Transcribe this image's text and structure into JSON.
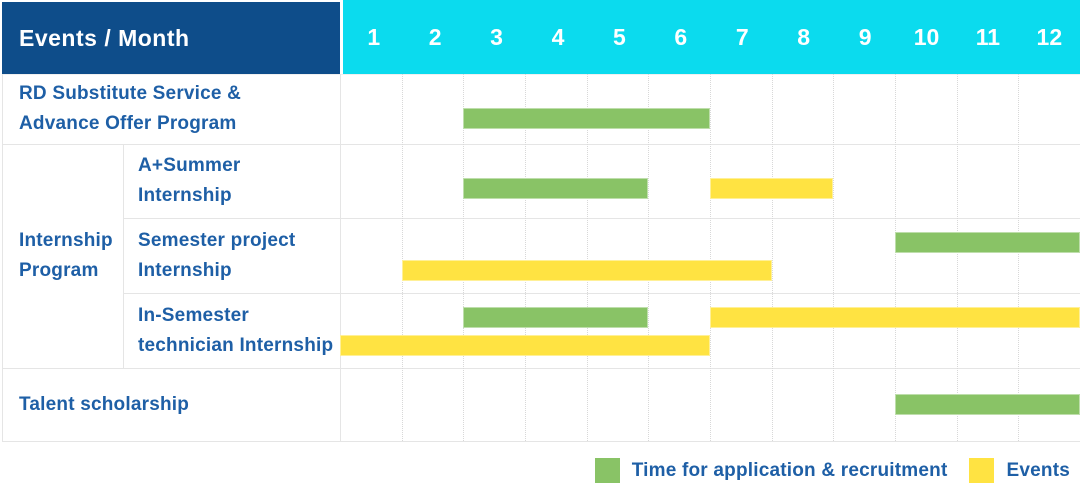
{
  "title_cell": "Events / Month",
  "months": [
    "1",
    "2",
    "3",
    "4",
    "5",
    "6",
    "7",
    "8",
    "9",
    "10",
    "11",
    "12"
  ],
  "colors": {
    "header_bg": "#0E4D8A",
    "months_bg": "#0BDBEE",
    "green": "#89C366",
    "yellow": "#FFE342",
    "label_text": "#1E5FA6"
  },
  "rows": {
    "rd": {
      "label": "RD Substitute Service &\nAdvance Offer Program",
      "bars": [
        {
          "color": "green",
          "start": 3,
          "end": 6,
          "lane": "mid"
        }
      ]
    },
    "group_label": "Internship\nProgram",
    "sub1": {
      "label": "A+Summer\nInternship",
      "bars": [
        {
          "color": "green",
          "start": 3,
          "end": 5,
          "lane": "mid"
        },
        {
          "color": "yellow",
          "start": 7,
          "end": 8,
          "lane": "mid"
        }
      ]
    },
    "sub2": {
      "label": "Semester project\nInternship",
      "bars": [
        {
          "color": "green",
          "start": 10,
          "end": 12,
          "lane": "top"
        },
        {
          "color": "yellow",
          "start": 2,
          "end": 7,
          "lane": "bottom"
        }
      ]
    },
    "sub3": {
      "label": "In-Semester\ntechnician Internship",
      "bars": [
        {
          "color": "green",
          "start": 3,
          "end": 5,
          "lane": "top"
        },
        {
          "color": "yellow",
          "start": 7,
          "end": 12,
          "lane": "top"
        },
        {
          "color": "yellow",
          "start": 1,
          "end": 6,
          "lane": "bottom"
        }
      ]
    },
    "talent": {
      "label": "Talent scholarship",
      "bars": [
        {
          "color": "green",
          "start": 10,
          "end": 12,
          "lane": "mid"
        }
      ]
    }
  },
  "legend": [
    {
      "color": "green",
      "label": "Time for application & recruitment"
    },
    {
      "color": "yellow",
      "label": "Events"
    }
  ],
  "chart_data": {
    "type": "gantt",
    "title": "Events / Month",
    "x": {
      "label": "Month",
      "ticks": [
        1,
        2,
        3,
        4,
        5,
        6,
        7,
        8,
        9,
        10,
        11,
        12
      ],
      "range": [
        1,
        12
      ]
    },
    "legend": {
      "green": "Time for application & recruitment",
      "yellow": "Events"
    },
    "tasks": [
      {
        "name": "RD Substitute Service & Advance Offer Program",
        "group": null,
        "application_recruitment_months": [
          [
            3,
            6
          ]
        ],
        "events_months": []
      },
      {
        "name": "A+Summer Internship",
        "group": "Internship Program",
        "application_recruitment_months": [
          [
            3,
            5
          ]
        ],
        "events_months": [
          [
            7,
            8
          ]
        ]
      },
      {
        "name": "Semester project Internship",
        "group": "Internship Program",
        "application_recruitment_months": [
          [
            10,
            12
          ]
        ],
        "events_months": [
          [
            2,
            7
          ]
        ]
      },
      {
        "name": "In-Semester technician Internship",
        "group": "Internship Program",
        "application_recruitment_months": [
          [
            3,
            5
          ]
        ],
        "events_months": [
          [
            1,
            6
          ],
          [
            7,
            12
          ]
        ]
      },
      {
        "name": "Talent scholarship",
        "group": null,
        "application_recruitment_months": [
          [
            10,
            12
          ]
        ],
        "events_months": []
      }
    ],
    "layout": {
      "grid": "dotted monthly verticals",
      "legend_position": "bottom-right"
    }
  }
}
